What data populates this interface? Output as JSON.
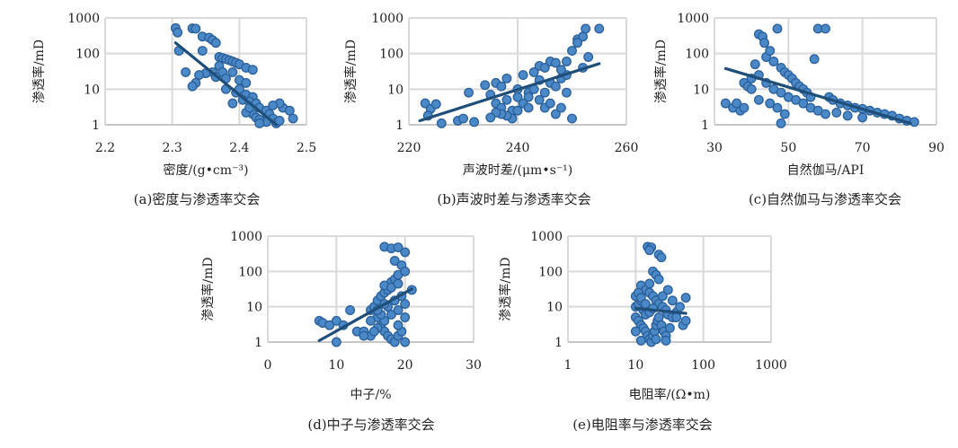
{
  "chart_data": [
    {
      "type": "scatter",
      "ylabel": "渗透率/mD",
      "xlabel": "密度/(g•cm⁻³)",
      "caption": "(a)密度与渗透率交会",
      "xscale": "linear",
      "yscale": "log",
      "xlim": [
        2.2,
        2.5
      ],
      "ylim": [
        1,
        1000
      ],
      "x_ticks": [
        "2.2",
        "2.3",
        "2.4",
        "2.5"
      ],
      "y_ticks": [
        "1",
        "10",
        "100",
        "1000"
      ],
      "trend": [
        [
          2.305,
          200
        ],
        [
          2.455,
          1
        ]
      ],
      "points": [
        [
          2.305,
          520
        ],
        [
          2.33,
          510
        ],
        [
          2.335,
          500
        ],
        [
          2.308,
          390
        ],
        [
          2.345,
          300
        ],
        [
          2.355,
          280
        ],
        [
          2.36,
          240
        ],
        [
          2.365,
          200
        ],
        [
          2.345,
          120
        ],
        [
          2.31,
          120
        ],
        [
          2.37,
          80
        ],
        [
          2.375,
          75
        ],
        [
          2.38,
          70
        ],
        [
          2.385,
          65
        ],
        [
          2.39,
          60
        ],
        [
          2.395,
          55
        ],
        [
          2.4,
          50
        ],
        [
          2.37,
          45
        ],
        [
          2.41,
          40
        ],
        [
          2.42,
          35
        ],
        [
          2.36,
          30
        ],
        [
          2.375,
          30
        ],
        [
          2.39,
          30
        ],
        [
          2.35,
          28
        ],
        [
          2.34,
          25
        ],
        [
          2.365,
          22
        ],
        [
          2.38,
          20
        ],
        [
          2.4,
          18
        ],
        [
          2.41,
          15
        ],
        [
          2.32,
          30
        ],
        [
          2.335,
          15
        ],
        [
          2.33,
          12
        ],
        [
          2.38,
          10
        ],
        [
          2.395,
          8
        ],
        [
          2.4,
          10
        ],
        [
          2.41,
          7
        ],
        [
          2.42,
          6
        ],
        [
          2.405,
          5
        ],
        [
          2.415,
          4.5
        ],
        [
          2.425,
          4
        ],
        [
          2.43,
          3
        ],
        [
          2.44,
          2.5
        ],
        [
          2.445,
          2
        ],
        [
          2.45,
          1.5
        ],
        [
          2.435,
          1.3
        ],
        [
          2.44,
          1.2
        ],
        [
          2.455,
          1.1
        ],
        [
          2.46,
          1.3
        ],
        [
          2.465,
          3
        ],
        [
          2.475,
          2.5
        ],
        [
          2.48,
          1.5
        ],
        [
          2.46,
          4
        ],
        [
          2.42,
          2
        ],
        [
          2.425,
          1.6
        ],
        [
          2.43,
          1.4
        ],
        [
          2.41,
          2.2
        ],
        [
          2.45,
          3.5
        ],
        [
          2.43,
          1.1
        ],
        [
          2.415,
          3
        ],
        [
          2.39,
          4
        ]
      ]
    },
    {
      "type": "scatter",
      "ylabel": "渗透率/mD",
      "xlabel": "声波时差/(μm•s⁻¹)",
      "caption": "(b)声波时差与渗透率交会",
      "xscale": "linear",
      "yscale": "log",
      "xlim": [
        220,
        260
      ],
      "ylim": [
        1,
        1000
      ],
      "x_ticks": [
        "220",
        "240",
        "260"
      ],
      "y_ticks": [
        "1",
        "10",
        "100",
        "1000"
      ],
      "trend": [
        [
          222,
          1.3
        ],
        [
          255,
          52
        ]
      ],
      "points": [
        [
          223,
          4
        ],
        [
          224,
          2.8
        ],
        [
          225,
          3.8
        ],
        [
          223.5,
          1.8
        ],
        [
          226,
          1.1
        ],
        [
          229,
          1.3
        ],
        [
          230,
          1.5
        ],
        [
          231,
          8
        ],
        [
          232,
          1.2
        ],
        [
          234,
          13
        ],
        [
          235,
          7
        ],
        [
          236,
          15
        ],
        [
          237,
          12
        ],
        [
          238,
          20
        ],
        [
          236,
          4
        ],
        [
          237,
          3
        ],
        [
          238,
          5
        ],
        [
          239,
          2.5
        ],
        [
          240,
          10
        ],
        [
          241,
          25
        ],
        [
          242,
          8
        ],
        [
          243,
          30
        ],
        [
          244,
          45
        ],
        [
          245,
          40
        ],
        [
          246,
          60
        ],
        [
          247,
          55
        ],
        [
          248,
          20
        ],
        [
          249,
          25
        ],
        [
          244,
          5
        ],
        [
          245,
          3
        ],
        [
          246,
          4
        ],
        [
          247,
          2
        ],
        [
          248,
          3
        ],
        [
          249,
          8
        ],
        [
          250,
          1.5
        ],
        [
          251,
          250
        ],
        [
          252,
          300
        ],
        [
          252.5,
          500
        ],
        [
          251,
          200
        ],
        [
          250,
          120
        ],
        [
          253,
          80
        ],
        [
          255,
          500
        ],
        [
          249,
          60
        ],
        [
          248,
          35
        ],
        [
          246,
          15
        ],
        [
          243,
          10
        ],
        [
          241,
          4
        ],
        [
          242,
          3
        ],
        [
          240,
          2.5
        ],
        [
          239,
          1.5
        ],
        [
          238,
          1.8
        ],
        [
          237,
          2
        ],
        [
          236,
          2.2
        ],
        [
          235,
          1.6
        ],
        [
          245,
          8
        ],
        [
          247,
          12
        ],
        [
          252,
          40
        ],
        [
          244,
          18
        ],
        [
          242,
          6
        ],
        [
          240,
          6
        ]
      ]
    },
    {
      "type": "scatter",
      "ylabel": "渗透率/mD",
      "xlabel": "自然伽马/API",
      "caption": "(c)自然伽马与渗透率交会",
      "xscale": "linear",
      "yscale": "log",
      "xlim": [
        30,
        90
      ],
      "ylim": [
        1,
        1000
      ],
      "x_ticks": [
        "30",
        "50",
        "70",
        "90"
      ],
      "y_ticks": [
        "1",
        "10",
        "100",
        "1000"
      ],
      "trend": [
        [
          33,
          38
        ],
        [
          83,
          1.1
        ]
      ],
      "points": [
        [
          33,
          4
        ],
        [
          35,
          3
        ],
        [
          36,
          4
        ],
        [
          37,
          2.5
        ],
        [
          38,
          15
        ],
        [
          39,
          12
        ],
        [
          40,
          10
        ],
        [
          41,
          50
        ],
        [
          42,
          350
        ],
        [
          43,
          300
        ],
        [
          43.5,
          200
        ],
        [
          44,
          80
        ],
        [
          45,
          120
        ],
        [
          46,
          60
        ],
        [
          47,
          500
        ],
        [
          48,
          40
        ],
        [
          49,
          30
        ],
        [
          50,
          25
        ],
        [
          51,
          20
        ],
        [
          52,
          15
        ],
        [
          53,
          12
        ],
        [
          54,
          10
        ],
        [
          55,
          8
        ],
        [
          56,
          6
        ],
        [
          57,
          70
        ],
        [
          58,
          500
        ],
        [
          60,
          500
        ],
        [
          61,
          6
        ],
        [
          62,
          5
        ],
        [
          64,
          4
        ],
        [
          66,
          3.5
        ],
        [
          68,
          3
        ],
        [
          70,
          2.8
        ],
        [
          72,
          2.5
        ],
        [
          74,
          2.2
        ],
        [
          76,
          2
        ],
        [
          78,
          1.8
        ],
        [
          80,
          1.5
        ],
        [
          82,
          1.3
        ],
        [
          84,
          1.2
        ],
        [
          40,
          20
        ],
        [
          42,
          25
        ],
        [
          44,
          15
        ],
        [
          46,
          10
        ],
        [
          48,
          8
        ],
        [
          50,
          6
        ],
        [
          52,
          5
        ],
        [
          54,
          4
        ],
        [
          56,
          3
        ],
        [
          58,
          2.5
        ],
        [
          60,
          2
        ],
        [
          45,
          4
        ],
        [
          47,
          3
        ],
        [
          49,
          2
        ],
        [
          42,
          5
        ],
        [
          38,
          3
        ],
        [
          48,
          1.1
        ],
        [
          63,
          2.2
        ],
        [
          66,
          1.8
        ],
        [
          70,
          1.6
        ]
      ]
    },
    {
      "type": "scatter",
      "ylabel": "渗透率/mD",
      "xlabel": "中子/%",
      "caption": "(d)中子与渗透率交会",
      "xscale": "linear",
      "yscale": "log",
      "xlim": [
        0,
        30
      ],
      "ylim": [
        1,
        1000
      ],
      "x_ticks": [
        "0",
        "10",
        "20",
        "30"
      ],
      "y_ticks": [
        "1",
        "10",
        "100",
        "1000"
      ],
      "trend": [
        [
          7.5,
          1.1
        ],
        [
          21,
          32
        ]
      ],
      "points": [
        [
          7.5,
          4
        ],
        [
          8,
          3.5
        ],
        [
          9,
          3
        ],
        [
          10,
          4
        ],
        [
          11,
          3
        ],
        [
          12,
          8
        ],
        [
          13,
          2
        ],
        [
          14,
          2
        ],
        [
          10,
          1
        ],
        [
          15,
          8
        ],
        [
          15.5,
          10
        ],
        [
          16,
          15
        ],
        [
          16.5,
          20
        ],
        [
          17,
          25
        ],
        [
          17.5,
          30
        ],
        [
          18,
          50
        ],
        [
          18.5,
          60
        ],
        [
          19,
          80
        ],
        [
          17,
          500
        ],
        [
          18,
          450
        ],
        [
          19,
          480
        ],
        [
          20,
          350
        ],
        [
          18.5,
          200
        ],
        [
          19.5,
          150
        ],
        [
          20,
          100
        ],
        [
          16,
          5
        ],
        [
          16.5,
          3
        ],
        [
          17,
          2
        ],
        [
          17.5,
          1.5
        ],
        [
          18,
          1.2
        ],
        [
          18.5,
          1
        ],
        [
          19,
          1.5
        ],
        [
          19.5,
          2
        ],
        [
          20,
          1
        ],
        [
          16,
          2.5
        ],
        [
          17,
          4
        ],
        [
          18,
          6
        ],
        [
          19,
          8
        ],
        [
          20,
          12
        ],
        [
          21,
          30
        ],
        [
          15,
          1.5
        ],
        [
          15.5,
          2
        ],
        [
          16.5,
          6
        ],
        [
          17.5,
          10
        ],
        [
          18.5,
          15
        ],
        [
          19.5,
          20
        ],
        [
          17,
          40
        ],
        [
          18,
          35
        ],
        [
          19,
          45
        ],
        [
          16,
          8
        ],
        [
          17,
          12
        ],
        [
          15,
          4
        ],
        [
          14,
          1.5
        ],
        [
          20,
          5
        ],
        [
          19,
          3
        ]
      ]
    },
    {
      "type": "scatter",
      "ylabel": "渗透率/mD",
      "xlabel": "电阻率/(Ω•m)",
      "caption": "(e)电阻率与渗透率交会",
      "xscale": "log",
      "yscale": "log",
      "xlim": [
        1,
        1000
      ],
      "ylim": [
        1,
        1000
      ],
      "x_ticks": [
        "1",
        "10",
        "100",
        "1000"
      ],
      "y_ticks": [
        "1",
        "10",
        "100",
        "1000"
      ],
      "trend": [
        [
          10,
          9
        ],
        [
          55,
          6.5
        ]
      ],
      "points": [
        [
          15,
          500
        ],
        [
          17,
          480
        ],
        [
          16,
          400
        ],
        [
          22,
          300
        ],
        [
          24,
          250
        ],
        [
          18,
          100
        ],
        [
          20,
          80
        ],
        [
          12,
          40
        ],
        [
          14,
          30
        ],
        [
          16,
          25
        ],
        [
          18,
          20
        ],
        [
          20,
          15
        ],
        [
          22,
          12
        ],
        [
          25,
          10
        ],
        [
          28,
          8
        ],
        [
          30,
          6
        ],
        [
          35,
          5
        ],
        [
          40,
          7
        ],
        [
          45,
          10
        ],
        [
          55,
          18
        ],
        [
          10,
          5
        ],
        [
          11,
          4
        ],
        [
          12,
          3
        ],
        [
          13,
          2.5
        ],
        [
          14,
          2
        ],
        [
          15,
          1.5
        ],
        [
          16,
          1.2
        ],
        [
          17,
          1
        ],
        [
          18,
          1.5
        ],
        [
          19,
          2
        ],
        [
          20,
          3
        ],
        [
          21,
          4
        ],
        [
          22,
          5
        ],
        [
          10,
          10
        ],
        [
          11,
          12
        ],
        [
          12,
          15
        ],
        [
          10,
          20
        ],
        [
          11,
          25
        ],
        [
          12,
          18
        ],
        [
          13,
          8
        ],
        [
          25,
          20
        ],
        [
          30,
          30
        ],
        [
          35,
          15
        ],
        [
          40,
          5
        ],
        [
          50,
          3
        ],
        [
          55,
          4
        ],
        [
          14,
          6
        ],
        [
          16,
          7
        ],
        [
          18,
          9
        ],
        [
          24,
          3
        ],
        [
          26,
          2
        ],
        [
          28,
          1.5
        ],
        [
          32,
          2.5
        ],
        [
          20,
          1.2
        ],
        [
          12,
          1.1
        ],
        [
          10,
          2
        ],
        [
          14,
          12
        ],
        [
          16,
          45
        ],
        [
          22,
          60
        ],
        [
          28,
          1.1
        ]
      ]
    }
  ]
}
